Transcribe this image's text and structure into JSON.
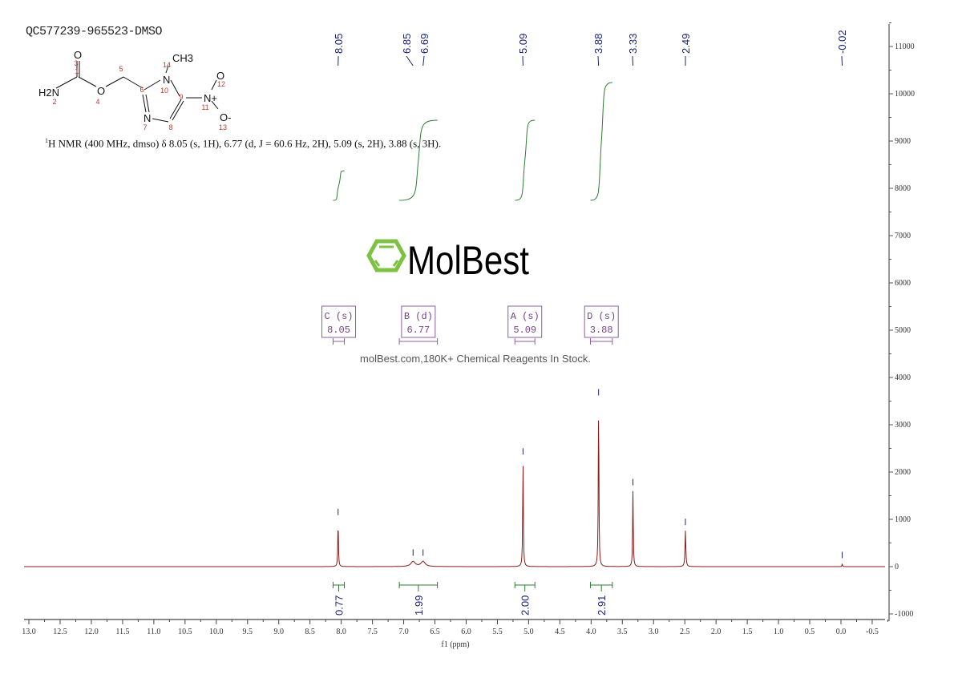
{
  "title": "QC577239-965523-DMSO",
  "summary": {
    "nucleus_sup": "1",
    "text": "H NMR (400 MHz, dmso) δ 8.05 (s, 1H), 6.77 (d, J = 60.6 Hz, 2H), 5.09 (s, 2H), 3.88 (s, 3H)."
  },
  "molecule": {
    "atoms": [
      "O",
      "CH3",
      "H2N",
      "O",
      "N",
      "N",
      "N+",
      "O",
      "O-"
    ],
    "numbers": [
      "1",
      "2",
      "3",
      "4",
      "5",
      "6",
      "7",
      "8",
      "9",
      "10",
      "11",
      "12",
      "13",
      "14"
    ]
  },
  "watermark": {
    "brand": "MolBest",
    "tagline": "molBest.com,180K+ Chemical Reagents In Stock.",
    "color": "#7dc242"
  },
  "chart_data": {
    "type": "line",
    "title": "",
    "xlabel": "f1 (ppm)",
    "ylabel": "",
    "xlim": [
      13.0,
      -0.7
    ],
    "ylim": [
      -1100,
      11500
    ],
    "x_reversed": true,
    "xticks": [
      "13.0",
      "12.5",
      "12.0",
      "11.5",
      "11.0",
      "10.5",
      "10.0",
      "9.5",
      "9.0",
      "8.5",
      "8.0",
      "7.5",
      "7.0",
      "6.5",
      "6.0",
      "5.5",
      "5.0",
      "4.5",
      "4.0",
      "3.5",
      "3.0",
      "2.5",
      "2.0",
      "1.5",
      "1.0",
      "0.5",
      "0.0",
      "-0.5"
    ],
    "yticks": [
      "-1000",
      "0",
      "1000",
      "2000",
      "3000",
      "4000",
      "5000",
      "6000",
      "7000",
      "8000",
      "9000",
      "10000",
      "11000"
    ],
    "peak_labels": [
      "8.05",
      "6.85",
      "6.69",
      "5.09",
      "3.88",
      "3.33",
      "2.49",
      "-0.02"
    ],
    "peaks": [
      {
        "ppm": 8.05,
        "height": 970,
        "width": 0.012
      },
      {
        "ppm": 6.85,
        "height": 110,
        "width": 0.08
      },
      {
        "ppm": 6.69,
        "height": 110,
        "width": 0.08
      },
      {
        "ppm": 5.09,
        "height": 2250,
        "width": 0.012
      },
      {
        "ppm": 3.88,
        "height": 3500,
        "width": 0.012
      },
      {
        "ppm": 3.33,
        "height": 1600,
        "width": 0.012
      },
      {
        "ppm": 2.49,
        "height": 760,
        "width": 0.015
      },
      {
        "ppm": -0.02,
        "height": 60,
        "width": 0.01
      }
    ],
    "integrals": [
      {
        "from": 8.13,
        "to": 7.95,
        "value": "0.77"
      },
      {
        "from": 7.07,
        "to": 6.46,
        "value": "1.99"
      },
      {
        "from": 5.22,
        "to": 4.9,
        "value": "2.00"
      },
      {
        "from": 4.01,
        "to": 3.66,
        "value": "2.91"
      }
    ],
    "multiplets": [
      {
        "label": "C (s)",
        "shift": "8.05",
        "from": 8.13,
        "to": 7.95
      },
      {
        "label": "B (d)",
        "shift": "6.77",
        "from": 7.07,
        "to": 6.46
      },
      {
        "label": "A (s)",
        "shift": "5.09",
        "from": 5.22,
        "to": 4.9
      },
      {
        "label": "D (s)",
        "shift": "3.88",
        "from": 4.01,
        "to": 3.66
      }
    ],
    "colors": {
      "spectrum": "#8b1a1a",
      "integral": "#2e7d32",
      "peak_label": "#1a237e",
      "multiplet": "#8e5ea2"
    }
  }
}
